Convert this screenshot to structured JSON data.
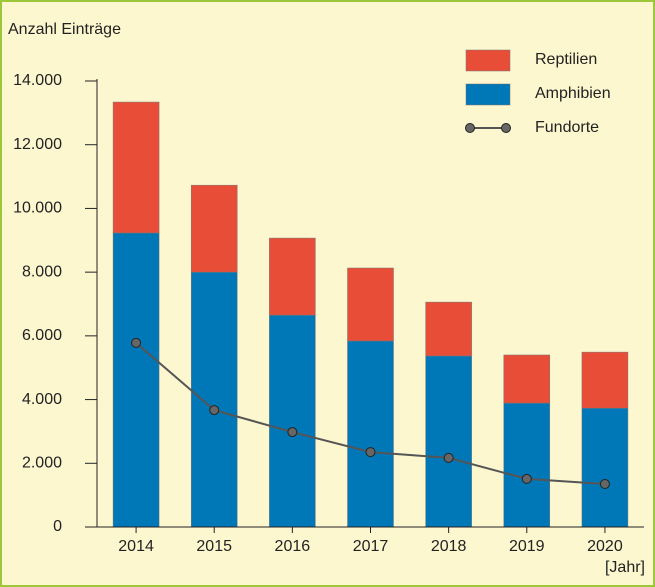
{
  "chart_data": {
    "type": "bar",
    "stacked": true,
    "ylabel": "Anzahl Einträge",
    "xlabel": "[Jahr]",
    "categories": [
      "2014",
      "2015",
      "2016",
      "2017",
      "2018",
      "2019",
      "2020"
    ],
    "series": [
      {
        "name": "Reptilien",
        "color": "#e84e37",
        "values": [
          4110,
          2730,
          2420,
          2290,
          1690,
          1510,
          1760
        ]
      },
      {
        "name": "Amphibien",
        "color": "#0077b6",
        "values": [
          9230,
          8000,
          6650,
          5840,
          5370,
          3890,
          3730
        ]
      },
      {
        "name": "Fundorte",
        "type": "line",
        "color": "#555555",
        "values": [
          5780,
          3670,
          2980,
          2350,
          2170,
          1510,
          1350
        ]
      }
    ],
    "ylim": [
      0,
      14000
    ],
    "yticks": [
      0,
      {
        "value": 2000,
        "label": "2.000"
      },
      {
        "value": 4000,
        "label": "4.000"
      },
      {
        "value": 6000,
        "label": "6.000"
      },
      {
        "value": 8000,
        "label": "8.000"
      },
      {
        "value": 10000,
        "label": "10.000"
      },
      {
        "value": 12000,
        "label": "12.000"
      },
      {
        "value": 14000,
        "label": "14.000"
      }
    ],
    "grid": false,
    "legend": "upper right"
  }
}
